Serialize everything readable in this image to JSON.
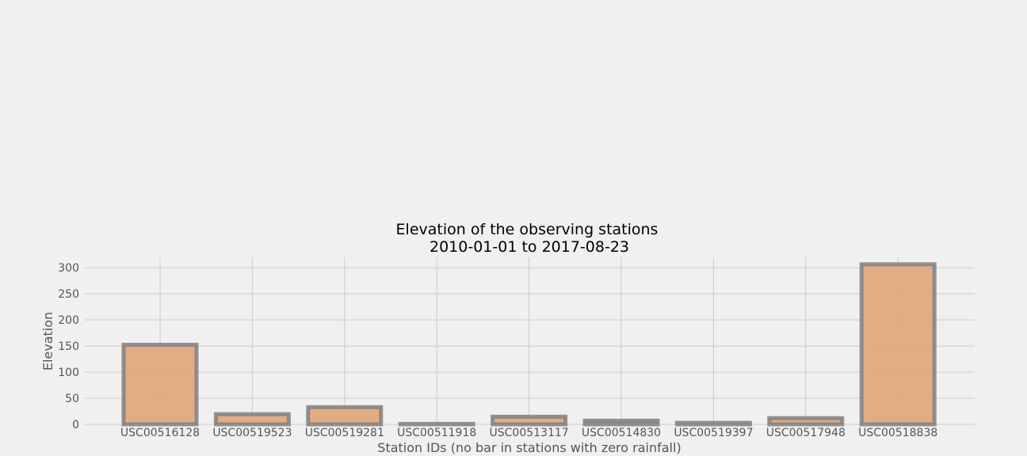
{
  "chart_data": {
    "type": "bar",
    "title_line1": "Elevation of the observing stations",
    "title_line2": "2010-01-01 to 2017-08-23",
    "xlabel": "Station IDs (no bar in stations with zero rainfall)",
    "ylabel": "Elevation",
    "categories": [
      "USC00516128",
      "USC00519523",
      "USC00519281",
      "USC00511918",
      "USC00513117",
      "USC00514830",
      "USC00519397",
      "USC00517948",
      "USC00518838"
    ],
    "values": [
      152.4,
      19.5,
      32.9,
      0.9,
      14.6,
      7.0,
      3.0,
      11.9,
      306.6
    ],
    "ylim": [
      0,
      320
    ],
    "yticks": [
      0,
      50,
      100,
      150,
      200,
      250,
      300
    ],
    "grid": true,
    "colors": {
      "bar_fill": "#e0a87e",
      "bar_edge": "#808080",
      "grid": "#cbcbcb",
      "background": "#f0f0f0"
    }
  }
}
